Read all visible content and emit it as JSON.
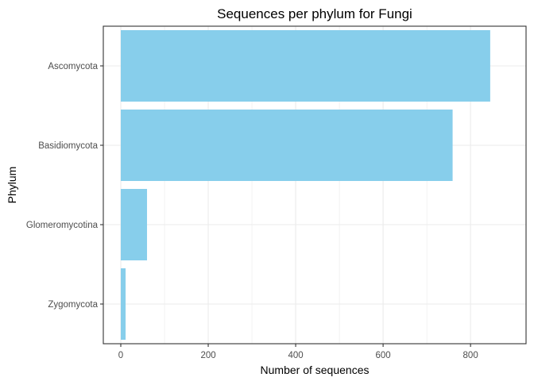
{
  "chart_data": {
    "type": "bar",
    "orientation": "horizontal",
    "title": "Sequences per phylum for Fungi",
    "xlabel": "Number of sequences",
    "ylabel": "Phylum",
    "categories": [
      "Ascomycota",
      "Basidiomycota",
      "Glomeromycotina",
      "Zygomycota"
    ],
    "values": [
      845,
      759,
      60,
      11
    ],
    "xlim": [
      0,
      887
    ],
    "xticks": [
      0,
      200,
      400,
      600,
      800
    ],
    "grid": true,
    "legend": "none",
    "colors": {
      "bar": "#87ceeb",
      "grid": "#ebebeb",
      "axis_text": "#4d4d4d",
      "border": "#333333"
    }
  }
}
